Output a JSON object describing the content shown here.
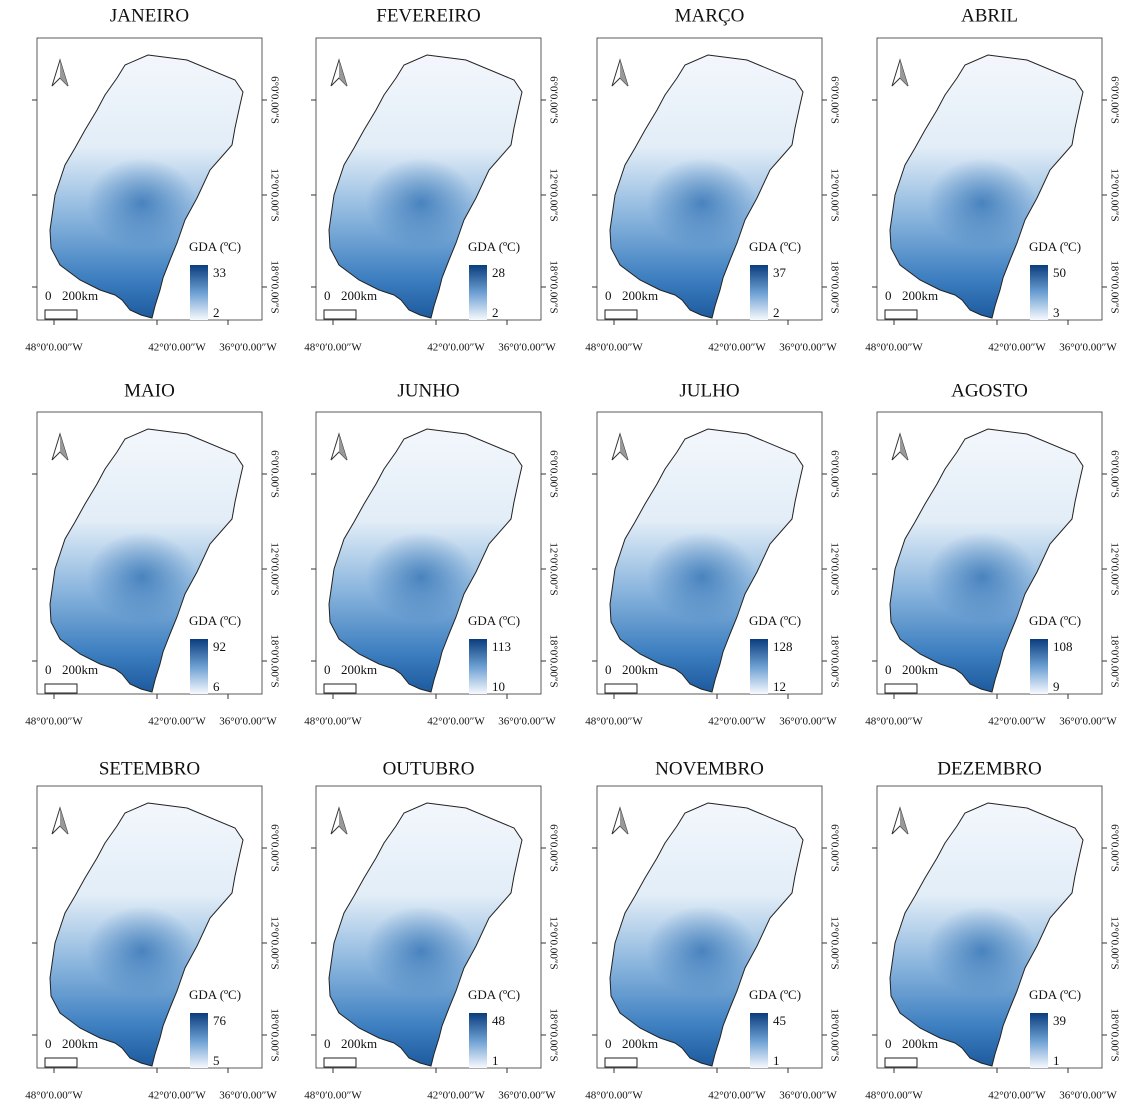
{
  "legend_title": "GDA (ºC)",
  "scale_labels": [
    "0",
    "200km"
  ],
  "x_labels": [
    "48°0′0.00″W",
    "42°0′0.00″W",
    "36°0′0.00″W"
  ],
  "y_labels": [
    "6°0′0.00″S",
    "12°0′0.00″S",
    "18°0′0.00″S"
  ],
  "panels": [
    {
      "title": "JANEIRO",
      "legend_max": 33,
      "legend_min": 2
    },
    {
      "title": "FEVEREIRO",
      "legend_max": 28,
      "legend_min": 2
    },
    {
      "title": "MARÇO",
      "legend_max": 37,
      "legend_min": 2
    },
    {
      "title": "ABRIL",
      "legend_max": 50,
      "legend_min": 3
    },
    {
      "title": "MAIO",
      "legend_max": 92,
      "legend_min": 6
    },
    {
      "title": "JUNHO",
      "legend_max": 113,
      "legend_min": 10
    },
    {
      "title": "JULHO",
      "legend_max": 128,
      "legend_min": 12
    },
    {
      "title": "AGOSTO",
      "legend_max": 108,
      "legend_min": 9
    },
    {
      "title": "SETEMBRO",
      "legend_max": 76,
      "legend_min": 5
    },
    {
      "title": "OUTUBRO",
      "legend_max": 48,
      "legend_min": 1
    },
    {
      "title": "NOVEMBRO",
      "legend_max": 45,
      "legend_min": 1
    },
    {
      "title": "DEZEMBRO",
      "legend_max": 39,
      "legend_min": 1
    }
  ]
}
